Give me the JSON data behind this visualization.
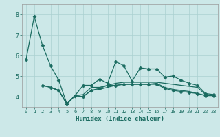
{
  "title": "",
  "xlabel": "Humidex (Indice chaleur)",
  "bg_color": "#cce8e8",
  "line_color": "#1a6b60",
  "grid_color": "#aad0d0",
  "xlim": [
    -0.5,
    23.5
  ],
  "ylim": [
    3.5,
    8.5
  ],
  "yticks": [
    4,
    5,
    6,
    7,
    8
  ],
  "xticks": [
    0,
    1,
    2,
    3,
    4,
    5,
    6,
    7,
    8,
    9,
    10,
    11,
    12,
    13,
    14,
    15,
    16,
    17,
    18,
    19,
    20,
    21,
    22,
    23
  ],
  "series": [
    {
      "x": [
        0,
        1,
        2,
        3,
        4,
        5,
        6,
        7,
        8,
        9,
        10,
        11,
        12,
        13,
        14,
        15,
        16,
        17,
        18,
        19,
        20,
        21,
        22,
        23
      ],
      "y": [
        5.8,
        7.9,
        6.5,
        5.5,
        4.8,
        3.65,
        4.05,
        4.55,
        4.55,
        4.85,
        4.65,
        5.7,
        5.5,
        4.75,
        5.4,
        5.35,
        5.35,
        4.95,
        5.0,
        4.8,
        4.65,
        4.55,
        4.15,
        4.1
      ],
      "marker": "D",
      "markersize": 2.5,
      "lw": 0.9
    },
    {
      "x": [
        2,
        3,
        4,
        5,
        6,
        7,
        8,
        9,
        10,
        11,
        12,
        13,
        14,
        15,
        16,
        17,
        18,
        19,
        20,
        21,
        22,
        23
      ],
      "y": [
        4.55,
        4.45,
        4.3,
        3.65,
        4.05,
        4.1,
        4.45,
        4.45,
        4.55,
        4.65,
        4.7,
        4.7,
        4.7,
        4.7,
        4.7,
        4.65,
        4.6,
        4.55,
        4.5,
        4.45,
        4.1,
        4.05
      ],
      "marker": null,
      "markersize": 0,
      "lw": 0.9
    },
    {
      "x": [
        2,
        3,
        4,
        5,
        6,
        7,
        8,
        9,
        10,
        11,
        12,
        13,
        14,
        15,
        16,
        17,
        18,
        19,
        20,
        21,
        22,
        23
      ],
      "y": [
        4.55,
        4.45,
        4.3,
        3.65,
        4.05,
        4.0,
        4.3,
        4.35,
        4.45,
        4.55,
        4.6,
        4.6,
        4.6,
        4.6,
        4.65,
        4.45,
        4.35,
        4.3,
        4.25,
        4.15,
        4.05,
        4.05
      ],
      "marker": null,
      "markersize": 0,
      "lw": 0.9
    },
    {
      "x": [
        2,
        3,
        4,
        5,
        6,
        7,
        8,
        9,
        10,
        11,
        12,
        13,
        14,
        15,
        16,
        17,
        18,
        19,
        20,
        21,
        22,
        23
      ],
      "y": [
        4.55,
        4.45,
        4.3,
        3.65,
        4.05,
        4.0,
        4.3,
        4.4,
        4.55,
        4.55,
        4.6,
        4.6,
        4.6,
        4.6,
        4.6,
        4.4,
        4.3,
        4.25,
        4.2,
        4.15,
        4.05,
        4.05
      ],
      "marker": "D",
      "markersize": 2.5,
      "lw": 0.9
    }
  ]
}
